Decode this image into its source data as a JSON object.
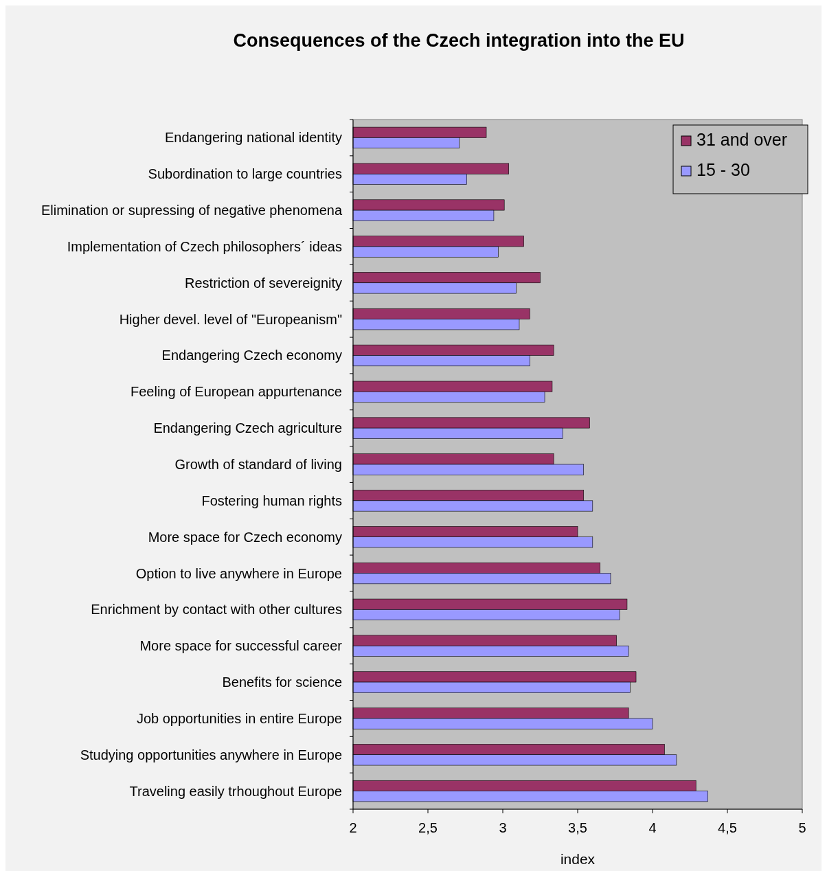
{
  "chart_data": {
    "type": "bar",
    "orientation": "horizontal",
    "title": "Consequences of the Czech integration into the EU",
    "xlabel": "index",
    "categories": [
      "Endangering national identity",
      "Subordination to large countries",
      "Elimination or supressing of negative phenomena",
      "Implementation of Czech philosophers´ ideas",
      "Restriction of severeignity",
      "Higher devel. level of \"Europeanism\"",
      "Endangering Czech economy",
      "Feeling of European appurtenance",
      "Endangering Czech agriculture",
      "Growth of standard of living",
      "Fostering human rights",
      "More space for Czech economy",
      "Option to live anywhere in Europe",
      "Enrichment by contact with other cultures",
      "More space for successful career",
      "Benefits for science",
      "Job opportunities in entire Europe",
      "Studying opportunities anywhere in Europe",
      "Traveling easily trhoughout Europe"
    ],
    "series": [
      {
        "name": "31 and over",
        "color": "#993366",
        "values": [
          2.89,
          3.04,
          3.01,
          3.14,
          3.25,
          3.18,
          3.34,
          3.33,
          3.58,
          3.34,
          3.54,
          3.5,
          3.65,
          3.83,
          3.76,
          3.89,
          3.84,
          4.08,
          4.29
        ]
      },
      {
        "name": "15 - 30",
        "color": "#9999ff",
        "values": [
          2.71,
          2.76,
          2.94,
          2.97,
          3.09,
          3.11,
          3.18,
          3.28,
          3.4,
          3.54,
          3.6,
          3.6,
          3.72,
          3.78,
          3.84,
          3.85,
          4.0,
          4.16,
          4.37
        ]
      }
    ],
    "xlim": [
      2,
      5
    ],
    "xticks": [
      2,
      {
        "value": 2.5,
        "label": "2,5"
      },
      3,
      {
        "value": 3.5,
        "label": "3,5"
      },
      4,
      {
        "value": 4.5,
        "label": "4,5"
      },
      5
    ],
    "grid": false,
    "legend": "top right"
  }
}
